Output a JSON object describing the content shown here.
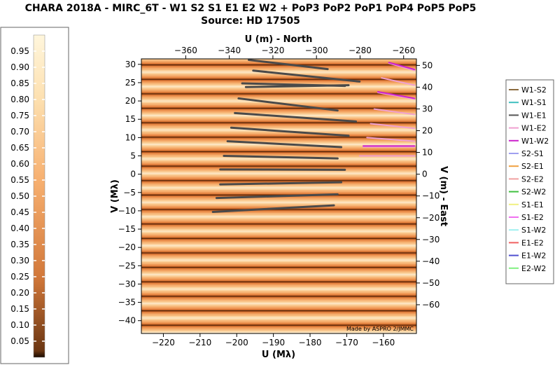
{
  "chart_data": {
    "type": "uv-coverage",
    "title": "CHARA 2018A - MIRC_6T - W1 S2 S1 E1 E2 W2 + PoP3 PoP2 PoP1 PoP4 PoP5 PoP5",
    "subtitle": "Source: HD 17505",
    "xlabel_bottom": "U (Mλ)",
    "xlabel_top": "U (m) - North",
    "ylabel_left": "V (Mλ)",
    "ylabel_right": "V (m) - East",
    "credit": "Made by ASPRO 2/JMMC",
    "xlim": [
      -226,
      -151
    ],
    "ylim": [
      -43.5,
      31.5
    ],
    "x_ticks_bottom": [
      -220,
      -210,
      -200,
      -190,
      -180,
      -170,
      -160
    ],
    "y_ticks_left": [
      -40,
      -35,
      -30,
      -25,
      -20,
      -15,
      -10,
      -5,
      0,
      5,
      10,
      15,
      20,
      25,
      30
    ],
    "x_ticks_top": [
      -360,
      -340,
      -320,
      -300,
      -280,
      -260
    ],
    "y_ticks_right": [
      -60,
      -50,
      -40,
      -30,
      -20,
      -10,
      0,
      10,
      20,
      30,
      40,
      50
    ],
    "top_axis_scale": 1.683,
    "right_axis_scale": 1.683,
    "fringe_period": 3.95,
    "fringe_offset": 2.2,
    "colorbar": {
      "min": 0,
      "max": 1,
      "ticks": [
        0.05,
        0.1,
        0.15,
        0.2,
        0.25,
        0.3,
        0.35,
        0.4,
        0.45,
        0.5,
        0.55,
        0.6,
        0.65,
        0.7,
        0.75,
        0.8,
        0.85,
        0.9,
        0.95
      ],
      "tick_labels": [
        "0.05",
        "0.10",
        "0.15",
        "0.20",
        "0.25",
        "0.30",
        "0.35",
        "0.40",
        "0.45",
        "0.50",
        "0.55",
        "0.60",
        "0.65",
        "0.70",
        "0.75",
        "0.80",
        "0.85",
        "0.90",
        "0.95"
      ],
      "color_low": "#1a0a00",
      "color_mid": "#e8964a",
      "color_high": "#fff6dc"
    },
    "legend": [
      {
        "name": "W1-S2",
        "color": "#8b6a3e"
      },
      {
        "name": "W1-S1",
        "color": "#3ebfbf"
      },
      {
        "name": "W1-E1",
        "color": "#555555"
      },
      {
        "name": "W1-E2",
        "color": "#f0a0d0"
      },
      {
        "name": "W1-W2",
        "color": "#cc22cc"
      },
      {
        "name": "S2-S1",
        "color": "#a0a0f0"
      },
      {
        "name": "S2-E1",
        "color": "#f0a040"
      },
      {
        "name": "S2-E2",
        "color": "#f0a0a0"
      },
      {
        "name": "S2-W2",
        "color": "#40c040"
      },
      {
        "name": "S1-E1",
        "color": "#f0f080"
      },
      {
        "name": "S1-E2",
        "color": "#f070f0"
      },
      {
        "name": "S1-W2",
        "color": "#a0f0f0"
      },
      {
        "name": "E1-E2",
        "color": "#f06060"
      },
      {
        "name": "E1-W2",
        "color": "#5050d0"
      },
      {
        "name": "E2-W2",
        "color": "#80f080"
      }
    ],
    "series": [
      {
        "name": "W1-E1",
        "color": "#4a4a4a",
        "tracks": [
          [
            [
              -196.7,
              31.2
            ],
            [
              -175.2,
              28.7
            ]
          ],
          [
            [
              -195.5,
              28.3
            ],
            [
              -166.5,
              25.3
            ]
          ],
          [
            [
              -197.5,
              23.8
            ],
            [
              -169.5,
              24.3
            ]
          ],
          [
            [
              -198.5,
              24.8
            ],
            [
              -170.5,
              24.1
            ]
          ],
          [
            [
              -199.5,
              20.7
            ],
            [
              -172.5,
              17.4
            ]
          ],
          [
            [
              -200.5,
              16.7
            ],
            [
              -167.5,
              14.4
            ]
          ],
          [
            [
              -201.5,
              12.7
            ],
            [
              -169.5,
              10.5
            ]
          ],
          [
            [
              -202.5,
              9.0
            ],
            [
              -171.5,
              7.4
            ]
          ],
          [
            [
              -203.5,
              5.0
            ],
            [
              -172.5,
              4.3
            ]
          ],
          [
            [
              -204.5,
              1.3
            ],
            [
              -170.5,
              1.2
            ]
          ],
          [
            [
              -204.5,
              -2.8
            ],
            [
              -171.5,
              -2.2
            ]
          ],
          [
            [
              -205.5,
              -6.5
            ],
            [
              -172.5,
              -5.5
            ]
          ],
          [
            [
              -206.5,
              -10.3
            ],
            [
              -173.5,
              -8.5
            ]
          ]
        ]
      },
      {
        "name": "W1-E2",
        "color": "#f0a0d0",
        "tracks": [
          [
            [
              -158.5,
              30.3
            ],
            [
              -151.5,
              28.3
            ]
          ],
          [
            [
              -160.5,
              26.3
            ],
            [
              -151.5,
              24.3
            ]
          ],
          [
            [
              -161.5,
              22.3
            ],
            [
              -151.5,
              20.5
            ]
          ],
          [
            [
              -162.5,
              17.8
            ],
            [
              -151.5,
              16.3
            ]
          ],
          [
            [
              -163.5,
              13.8
            ],
            [
              -151.5,
              12.5
            ]
          ],
          [
            [
              -164.5,
              10.0
            ],
            [
              -151.5,
              9.0
            ]
          ],
          [
            [
              -165.5,
              7.5
            ],
            [
              -151.5,
              7.5
            ]
          ],
          [
            [
              -166.5,
              5.0
            ],
            [
              -151.5,
              5.0
            ]
          ]
        ]
      },
      {
        "name": "W1-W2",
        "color": "#cc22cc",
        "tracks": [
          [
            [
              -158.5,
              30.5
            ],
            [
              -151.5,
              28.6
            ]
          ],
          [
            [
              -161.5,
              22.5
            ],
            [
              -151.5,
              20.7
            ]
          ],
          [
            [
              -165.5,
              7.7
            ],
            [
              -151.5,
              7.7
            ]
          ]
        ]
      }
    ]
  }
}
